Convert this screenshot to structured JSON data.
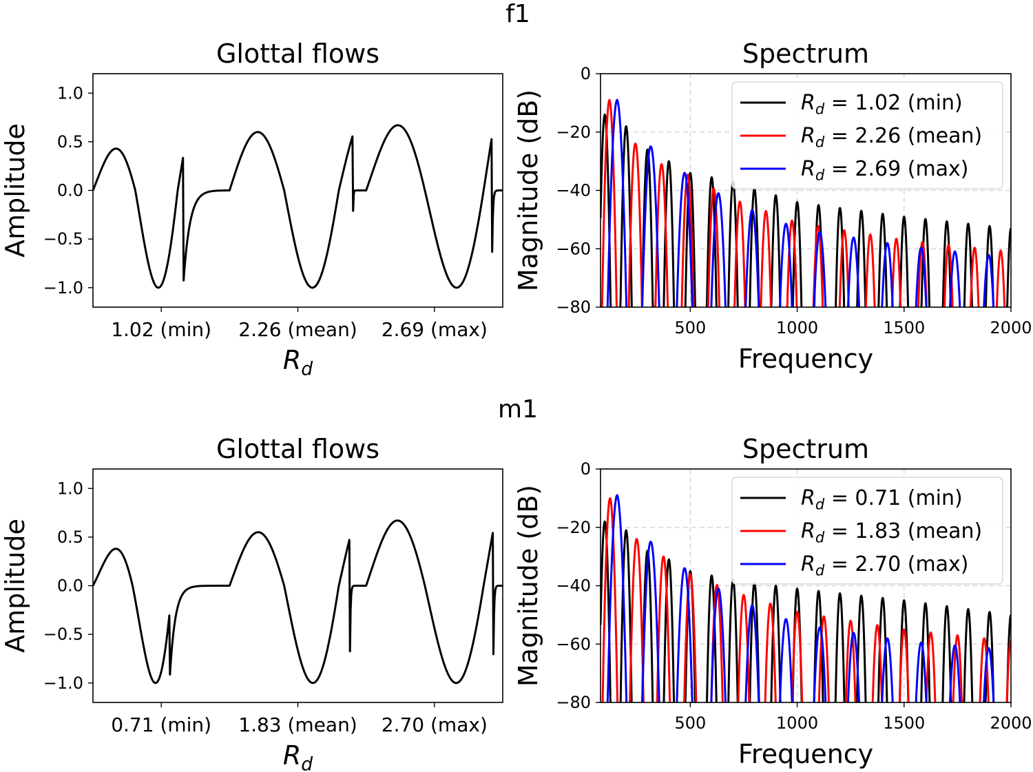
{
  "figure": {
    "row_titles": [
      "f1",
      "m1"
    ]
  },
  "chart_data": [
    {
      "type": "line",
      "group": "f1",
      "title": "Glottal flows",
      "xlabel": "R_d",
      "ylabel": "Amplitude",
      "ylim": [
        -1.2,
        1.2
      ],
      "yticks": [
        -1.0,
        -0.5,
        0.0,
        0.5,
        1.0
      ],
      "ytick_labels": [
        "−1.0",
        "−0.5",
        "0.0",
        "0.5",
        "1.0"
      ],
      "xtick_labels": [
        "1.02 (min)",
        "2.26 (mean)",
        "2.69 (max)"
      ],
      "grid": false,
      "series": [
        {
          "color": "#000000",
          "shape": {
            "te": 0.66,
            "tp": 0.31,
            "peak": 0.43,
            "ret": 0.16
          }
        },
        {
          "color": "#000000",
          "shape": {
            "te": 0.9,
            "tp": 0.4,
            "peak": 0.6,
            "ret": 0.03
          }
        },
        {
          "color": "#000000",
          "shape": {
            "te": 0.92,
            "tp": 0.43,
            "peak": 0.67,
            "ret": 0.08
          }
        }
      ]
    },
    {
      "type": "line",
      "group": "f1",
      "title": "Spectrum",
      "xlabel": "Frequency",
      "ylabel": "Magnitude (dB)",
      "xlim": [
        80,
        2000
      ],
      "ylim": [
        -80,
        0
      ],
      "xticks": [
        500,
        1000,
        1500,
        2000
      ],
      "yticks": [
        -80,
        -60,
        -40,
        -20,
        0
      ],
      "ytick_labels": [
        "−80",
        "−60",
        "−40",
        "−20",
        "0"
      ],
      "grid": true,
      "legend": "top-right",
      "series": [
        {
          "name": "R_d = 1.02 (min)",
          "label_text": " = 1.02 (min)",
          "color": "#000000",
          "f0": 100,
          "peaks": [
            [
              100,
              -14
            ],
            [
              200,
              -18
            ],
            [
              300,
              -26
            ],
            [
              400,
              -30
            ],
            [
              500,
              -34
            ],
            [
              700,
              -37
            ],
            [
              1000,
              -44
            ],
            [
              1500,
              -49
            ],
            [
              2000,
              -53
            ]
          ]
        },
        {
          "name": "R_d = 2.26 (mean)",
          "label_text": " = 2.26 (mean)",
          "color": "#ff0000",
          "f0": 122,
          "peaks": [
            [
              122,
              -9
            ],
            [
              244,
              -24
            ],
            [
              366,
              -31
            ],
            [
              500,
              -35
            ],
            [
              700,
              -43
            ],
            [
              1000,
              -51
            ],
            [
              1500,
              -57
            ],
            [
              2000,
              -61
            ]
          ]
        },
        {
          "name": "R_d = 2.69 (max)",
          "label_text": " = 2.69 (max)",
          "color": "#0000ff",
          "f0": 158,
          "peaks": [
            [
              158,
              -9
            ],
            [
              316,
              -25
            ],
            [
              474,
              -34
            ],
            [
              700,
              -44
            ],
            [
              1000,
              -53
            ],
            [
              1500,
              -59
            ],
            [
              2000,
              -63
            ]
          ]
        }
      ]
    },
    {
      "type": "line",
      "group": "m1",
      "title": "Glottal flows",
      "xlabel": "R_d",
      "ylabel": "Amplitude",
      "ylim": [
        -1.2,
        1.2
      ],
      "yticks": [
        -1.0,
        -0.5,
        0.0,
        0.5,
        1.0
      ],
      "ytick_labels": [
        "−1.0",
        "−0.5",
        "0.0",
        "0.5",
        "1.0"
      ],
      "xtick_labels": [
        "0.71 (min)",
        "1.83 (mean)",
        "2.70 (max)"
      ],
      "grid": false,
      "series": [
        {
          "color": "#000000",
          "shape": {
            "te": 0.56,
            "tp": 0.29,
            "peak": 0.38,
            "ret": 0.1
          }
        },
        {
          "color": "#000000",
          "shape": {
            "te": 0.88,
            "tp": 0.4,
            "peak": 0.55,
            "ret": 0.04
          }
        },
        {
          "color": "#000000",
          "shape": {
            "te": 0.93,
            "tp": 0.43,
            "peak": 0.67,
            "ret": 0.08
          }
        }
      ]
    },
    {
      "type": "line",
      "group": "m1",
      "title": "Spectrum",
      "xlabel": "Frequency",
      "ylabel": "Magnitude (dB)",
      "xlim": [
        80,
        2000
      ],
      "ylim": [
        -80,
        0
      ],
      "xticks": [
        500,
        1000,
        1500,
        2000
      ],
      "yticks": [
        -80,
        -60,
        -40,
        -20,
        0
      ],
      "ytick_labels": [
        "−80",
        "−60",
        "−40",
        "−20",
        "0"
      ],
      "grid": true,
      "legend": "top-right",
      "series": [
        {
          "name": "R_d = 0.71 (min)",
          "label_text": " = 0.71 (min)",
          "color": "#000000",
          "f0": 100,
          "peaks": [
            [
              100,
              -18
            ],
            [
              200,
              -21
            ],
            [
              300,
              -28
            ],
            [
              400,
              -31
            ],
            [
              500,
              -35
            ],
            [
              700,
              -38
            ],
            [
              1000,
              -41
            ],
            [
              1500,
              -45
            ],
            [
              2000,
              -50
            ]
          ]
        },
        {
          "name": "R_d = 1.83 (mean)",
          "label_text": " = 1.83 (mean)",
          "color": "#ff0000",
          "f0": 125,
          "peaks": [
            [
              125,
              -10
            ],
            [
              250,
              -24
            ],
            [
              375,
              -30
            ],
            [
              500,
              -36
            ],
            [
              700,
              -42
            ],
            [
              1000,
              -49
            ],
            [
              1500,
              -55
            ],
            [
              2000,
              -59
            ]
          ]
        },
        {
          "name": "R_d = 2.70 (max)",
          "label_text": " = 2.70 (max)",
          "color": "#0000ff",
          "f0": 158,
          "peaks": [
            [
              158,
              -9
            ],
            [
              316,
              -25
            ],
            [
              474,
              -34
            ],
            [
              700,
              -44
            ],
            [
              1000,
              -53
            ],
            [
              1500,
              -59
            ],
            [
              2000,
              -62
            ]
          ]
        }
      ]
    }
  ]
}
